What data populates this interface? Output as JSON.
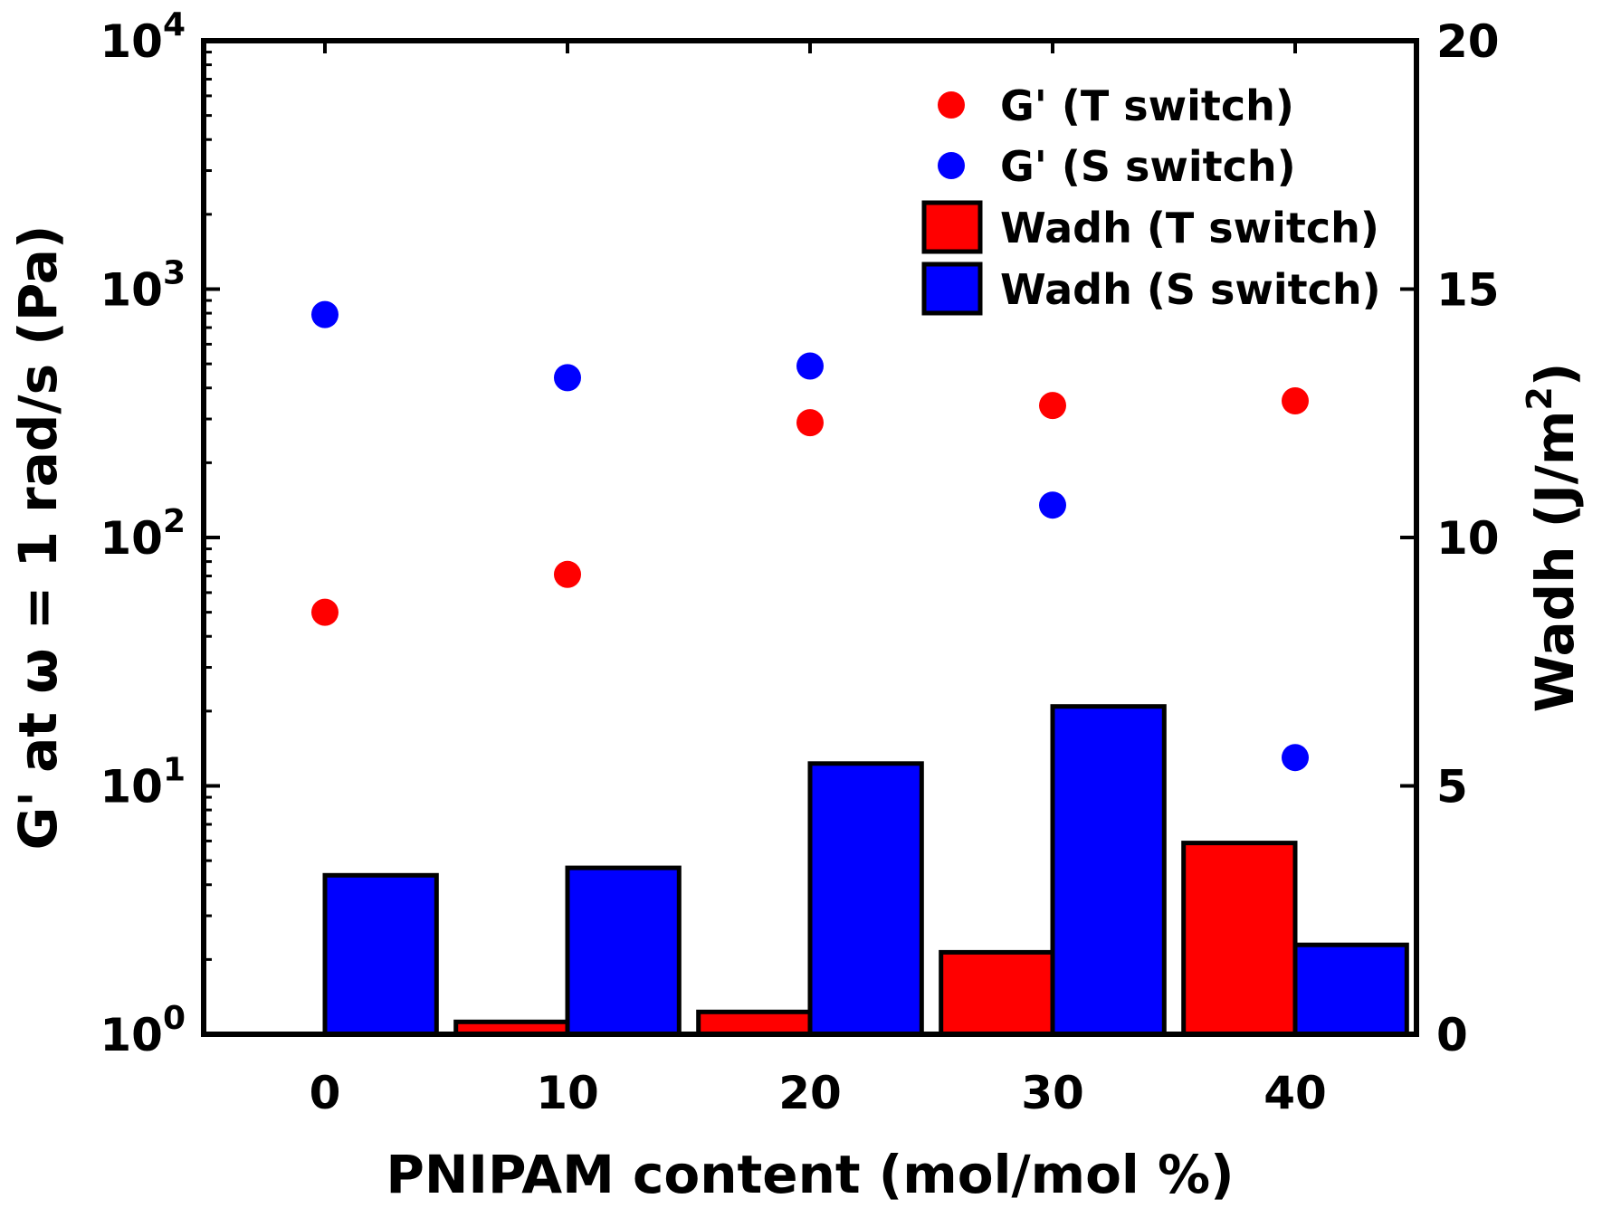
{
  "chart_data": {
    "type": "bar+scatter",
    "categories": [
      0,
      10,
      20,
      30,
      40
    ],
    "xlabel": "PNIPAM content (mol/mol %)",
    "x_ticks": [
      "0",
      "10",
      "20",
      "30",
      "40"
    ],
    "xlim": [
      -5,
      45
    ],
    "left_axis": {
      "label": "G' at ω = 1 rad/s (Pa)",
      "scale": "log",
      "ylim": [
        1,
        10000
      ],
      "ticks": [
        {
          "base": "10",
          "exp": "0",
          "value": 1
        },
        {
          "base": "10",
          "exp": "1",
          "value": 10
        },
        {
          "base": "10",
          "exp": "2",
          "value": 100
        },
        {
          "base": "10",
          "exp": "3",
          "value": 1000
        },
        {
          "base": "10",
          "exp": "4",
          "value": 10000
        }
      ]
    },
    "right_axis": {
      "label_main": "Wadh (J/m",
      "label_sup": "2",
      "label_end": ")",
      "scale": "linear",
      "ylim": [
        0,
        20
      ],
      "ticks": [
        "0",
        "5",
        "10",
        "15",
        "20"
      ]
    },
    "scatter_series": [
      {
        "name": "G' (T switch)",
        "color": "#ff0000",
        "x": [
          0,
          10,
          20,
          30,
          40
        ],
        "values": [
          50,
          71,
          290,
          340,
          355
        ]
      },
      {
        "name": "G' (S switch)",
        "color": "#0000ff",
        "x": [
          0,
          10,
          20,
          30,
          40
        ],
        "values": [
          790,
          440,
          490,
          135,
          13
        ]
      }
    ],
    "bar_series": [
      {
        "name": "Wadh (T switch)",
        "color": "#ff0000",
        "x": [
          0,
          10,
          20,
          30,
          40
        ],
        "values": [
          0,
          0.25,
          0.45,
          1.65,
          3.85
        ]
      },
      {
        "name": "Wadh (S switch)",
        "color": "#0000ff",
        "x": [
          0,
          10,
          20,
          30,
          40
        ],
        "values": [
          3.2,
          3.35,
          5.45,
          6.6,
          1.8
        ]
      }
    ],
    "legend": [
      {
        "label": "G' (T switch)",
        "marker": "circle",
        "color": "#ff0000"
      },
      {
        "label": "G' (S switch)",
        "marker": "circle",
        "color": "#0000ff"
      },
      {
        "label": "Wadh (T switch)",
        "marker": "bar",
        "color": "#ff0000"
      },
      {
        "label": "Wadh (S switch)",
        "marker": "bar",
        "color": "#0000ff"
      }
    ],
    "legend_position": "top-right"
  }
}
